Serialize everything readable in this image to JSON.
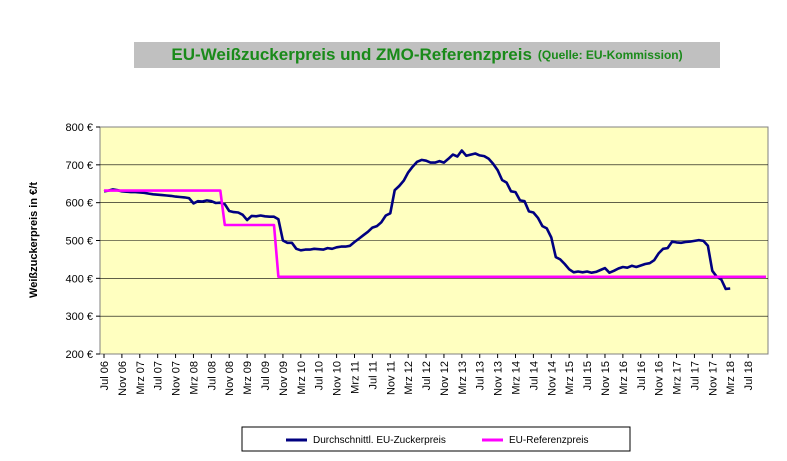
{
  "chart_data": {
    "type": "line",
    "title": "EU-Weißzuckerpreis und ZMO-Referenzpreis",
    "subtitle": "(Quelle: EU-Kommission)",
    "ylabel": "Weißzuckerpreis in €/t",
    "xlabel": "",
    "ylim": [
      200,
      800
    ],
    "yticks": [
      "200 €",
      "300 €",
      "400 €",
      "500 €",
      "600 €",
      "700 €",
      "800 €"
    ],
    "ytick_values": [
      200,
      300,
      400,
      500,
      600,
      700,
      800
    ],
    "xlim": [
      "2006-07",
      "2018-11"
    ],
    "x_ticks": [
      {
        "month": "2006-07",
        "label": "Jul 06"
      },
      {
        "month": "2006-11",
        "label": "Nov 06"
      },
      {
        "month": "2007-03",
        "label": "Mrz 07"
      },
      {
        "month": "2007-07",
        "label": "Jul 07"
      },
      {
        "month": "2007-11",
        "label": "Nov 07"
      },
      {
        "month": "2008-03",
        "label": "Mrz 08"
      },
      {
        "month": "2008-07",
        "label": "Jul 08"
      },
      {
        "month": "2008-11",
        "label": "Nov 08"
      },
      {
        "month": "2009-03",
        "label": "Mrz 09"
      },
      {
        "month": "2009-07",
        "label": "Jul 09"
      },
      {
        "month": "2009-11",
        "label": "Nov 09"
      },
      {
        "month": "2010-03",
        "label": "Mrz 10"
      },
      {
        "month": "2010-07",
        "label": "Jul 10"
      },
      {
        "month": "2010-11",
        "label": "Nov 10"
      },
      {
        "month": "2011-03",
        "label": "Mrz 11"
      },
      {
        "month": "2011-07",
        "label": "Jul 11"
      },
      {
        "month": "2011-11",
        "label": "Nov 11"
      },
      {
        "month": "2012-03",
        "label": "Mrz 12"
      },
      {
        "month": "2012-07",
        "label": "Jul 12"
      },
      {
        "month": "2012-11",
        "label": "Nov 12"
      },
      {
        "month": "2013-03",
        "label": "Mrz 13"
      },
      {
        "month": "2013-07",
        "label": "Jul 13"
      },
      {
        "month": "2013-11",
        "label": "Nov 13"
      },
      {
        "month": "2014-03",
        "label": "Mrz 14"
      },
      {
        "month": "2014-07",
        "label": "Jul 14"
      },
      {
        "month": "2014-11",
        "label": "Nov 14"
      },
      {
        "month": "2015-03",
        "label": "Mrz 15"
      },
      {
        "month": "2015-07",
        "label": "Jul 15"
      },
      {
        "month": "2015-11",
        "label": "Nov 15"
      },
      {
        "month": "2016-03",
        "label": "Mrz 16"
      },
      {
        "month": "2016-07",
        "label": "Jul 16"
      },
      {
        "month": "2016-11",
        "label": "Nov 16"
      },
      {
        "month": "2017-03",
        "label": "Mrz 17"
      },
      {
        "month": "2017-07",
        "label": "Jul 17"
      },
      {
        "month": "2017-11",
        "label": "Nov 17"
      },
      {
        "month": "2018-03",
        "label": "Mrz 18"
      },
      {
        "month": "2018-07",
        "label": "Jul 18"
      }
    ],
    "grid": "horizontal",
    "plot_background": "#ffffc0",
    "legend_position": "bottom",
    "series": [
      {
        "name": "Durchschnittl. EU-Zuckerpreis",
        "color": "#000080",
        "points": [
          [
            "2006-07",
            630
          ],
          [
            "2006-08",
            632
          ],
          [
            "2006-09",
            635
          ],
          [
            "2006-10",
            633
          ],
          [
            "2006-11",
            630
          ],
          [
            "2006-12",
            629
          ],
          [
            "2007-01",
            628
          ],
          [
            "2007-02",
            628
          ],
          [
            "2007-03",
            627
          ],
          [
            "2007-04",
            626
          ],
          [
            "2007-05",
            624
          ],
          [
            "2007-06",
            622
          ],
          [
            "2007-07",
            621
          ],
          [
            "2007-08",
            620
          ],
          [
            "2007-09",
            619
          ],
          [
            "2007-10",
            618
          ],
          [
            "2007-11",
            616
          ],
          [
            "2007-12",
            615
          ],
          [
            "2008-01",
            614
          ],
          [
            "2008-02",
            612
          ],
          [
            "2008-03",
            598
          ],
          [
            "2008-04",
            604
          ],
          [
            "2008-05",
            603
          ],
          [
            "2008-06",
            606
          ],
          [
            "2008-07",
            604
          ],
          [
            "2008-08",
            599
          ],
          [
            "2008-09",
            600
          ],
          [
            "2008-10",
            596
          ],
          [
            "2008-11",
            578
          ],
          [
            "2008-12",
            575
          ],
          [
            "2009-01",
            574
          ],
          [
            "2009-02",
            568
          ],
          [
            "2009-03",
            554
          ],
          [
            "2009-04",
            565
          ],
          [
            "2009-05",
            564
          ],
          [
            "2009-06",
            566
          ],
          [
            "2009-07",
            564
          ],
          [
            "2009-08",
            563
          ],
          [
            "2009-09",
            563
          ],
          [
            "2009-10",
            556
          ],
          [
            "2009-11",
            500
          ],
          [
            "2009-12",
            494
          ],
          [
            "2010-01",
            494
          ],
          [
            "2010-02",
            478
          ],
          [
            "2010-03",
            474
          ],
          [
            "2010-04",
            476
          ],
          [
            "2010-05",
            476
          ],
          [
            "2010-06",
            478
          ],
          [
            "2010-07",
            477
          ],
          [
            "2010-08",
            476
          ],
          [
            "2010-09",
            480
          ],
          [
            "2010-10",
            478
          ],
          [
            "2010-11",
            482
          ],
          [
            "2010-12",
            484
          ],
          [
            "2011-01",
            484
          ],
          [
            "2011-02",
            486
          ],
          [
            "2011-03",
            496
          ],
          [
            "2011-04",
            505
          ],
          [
            "2011-05",
            514
          ],
          [
            "2011-06",
            523
          ],
          [
            "2011-07",
            534
          ],
          [
            "2011-08",
            538
          ],
          [
            "2011-09",
            548
          ],
          [
            "2011-10",
            566
          ],
          [
            "2011-11",
            572
          ],
          [
            "2011-12",
            633
          ],
          [
            "2012-01",
            644
          ],
          [
            "2012-02",
            658
          ],
          [
            "2012-03",
            680
          ],
          [
            "2012-04",
            695
          ],
          [
            "2012-05",
            708
          ],
          [
            "2012-06",
            713
          ],
          [
            "2012-07",
            711
          ],
          [
            "2012-08",
            706
          ],
          [
            "2012-09",
            706
          ],
          [
            "2012-10",
            710
          ],
          [
            "2012-11",
            706
          ],
          [
            "2012-12",
            716
          ],
          [
            "2013-01",
            727
          ],
          [
            "2013-02",
            722
          ],
          [
            "2013-03",
            738
          ],
          [
            "2013-04",
            724
          ],
          [
            "2013-05",
            727
          ],
          [
            "2013-06",
            730
          ],
          [
            "2013-07",
            725
          ],
          [
            "2013-08",
            723
          ],
          [
            "2013-09",
            716
          ],
          [
            "2013-10",
            703
          ],
          [
            "2013-11",
            686
          ],
          [
            "2013-12",
            660
          ],
          [
            "2014-01",
            653
          ],
          [
            "2014-02",
            630
          ],
          [
            "2014-03",
            628
          ],
          [
            "2014-04",
            606
          ],
          [
            "2014-05",
            604
          ],
          [
            "2014-06",
            577
          ],
          [
            "2014-07",
            574
          ],
          [
            "2014-08",
            560
          ],
          [
            "2014-09",
            538
          ],
          [
            "2014-10",
            532
          ],
          [
            "2014-11",
            508
          ],
          [
            "2014-12",
            456
          ],
          [
            "2015-01",
            450
          ],
          [
            "2015-02",
            438
          ],
          [
            "2015-03",
            424
          ],
          [
            "2015-04",
            416
          ],
          [
            "2015-05",
            418
          ],
          [
            "2015-06",
            416
          ],
          [
            "2015-07",
            418
          ],
          [
            "2015-08",
            415
          ],
          [
            "2015-09",
            417
          ],
          [
            "2015-10",
            422
          ],
          [
            "2015-11",
            427
          ],
          [
            "2015-12",
            415
          ],
          [
            "2016-01",
            420
          ],
          [
            "2016-02",
            426
          ],
          [
            "2016-03",
            430
          ],
          [
            "2016-04",
            428
          ],
          [
            "2016-05",
            433
          ],
          [
            "2016-06",
            430
          ],
          [
            "2016-07",
            434
          ],
          [
            "2016-08",
            438
          ],
          [
            "2016-09",
            440
          ],
          [
            "2016-10",
            448
          ],
          [
            "2016-11",
            466
          ],
          [
            "2016-12",
            478
          ],
          [
            "2017-01",
            480
          ],
          [
            "2017-02",
            497
          ],
          [
            "2017-03",
            495
          ],
          [
            "2017-04",
            494
          ],
          [
            "2017-05",
            496
          ],
          [
            "2017-06",
            497
          ],
          [
            "2017-07",
            499
          ],
          [
            "2017-08",
            501
          ],
          [
            "2017-09",
            499
          ],
          [
            "2017-10",
            486
          ],
          [
            "2017-11",
            420
          ],
          [
            "2017-12",
            404
          ],
          [
            "2018-01",
            397
          ],
          [
            "2018-02",
            372
          ],
          [
            "2018-03",
            373
          ]
        ]
      },
      {
        "name": "EU-Referenzpreis",
        "color": "#ff00ff",
        "points": [
          [
            "2006-07",
            632
          ],
          [
            "2008-09",
            632
          ],
          [
            "2008-10",
            541
          ],
          [
            "2009-09",
            541
          ],
          [
            "2009-10",
            404
          ],
          [
            "2018-11",
            404
          ]
        ]
      }
    ]
  }
}
